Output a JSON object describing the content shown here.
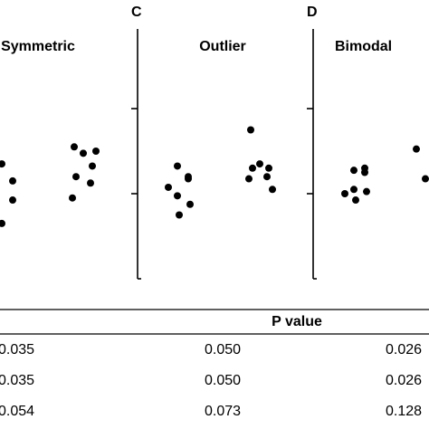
{
  "chart_data": [
    {
      "panel_label": "",
      "title": "Symmetric",
      "type": "scatter",
      "groups": [
        {
          "values": [
            2.7,
            2.3,
            1.85,
            1.3
          ]
        },
        {
          "values": [
            3.1,
            2.95,
            2.65,
            2.4,
            2.25,
            1.9,
            3.0
          ]
        }
      ]
    },
    {
      "panel_label": "C",
      "title": "Outlier",
      "type": "scatter",
      "groups": [
        {
          "values": [
            2.65,
            2.4,
            2.35,
            1.95,
            2.15,
            1.75,
            1.5
          ]
        },
        {
          "values": [
            3.5,
            2.7,
            2.6,
            2.6,
            2.4,
            2.35,
            2.1
          ]
        }
      ]
    },
    {
      "panel_label": "D",
      "title": "Bimodal",
      "type": "scatter",
      "groups": [
        {
          "values": [
            2.55,
            2.5,
            2.6,
            2.1,
            2.0,
            2.05,
            1.85
          ]
        },
        {
          "values": [
            3.05,
            2.35
          ]
        }
      ]
    }
  ],
  "table": {
    "header": "P value",
    "rows": [
      [
        "0.035",
        "0.050",
        "0.026"
      ],
      [
        "0.035",
        "0.050",
        "0.026"
      ],
      [
        "0.054",
        "0.073",
        "0.128"
      ]
    ]
  },
  "colors": {
    "ink": "#000000",
    "background": "#ffffff"
  }
}
